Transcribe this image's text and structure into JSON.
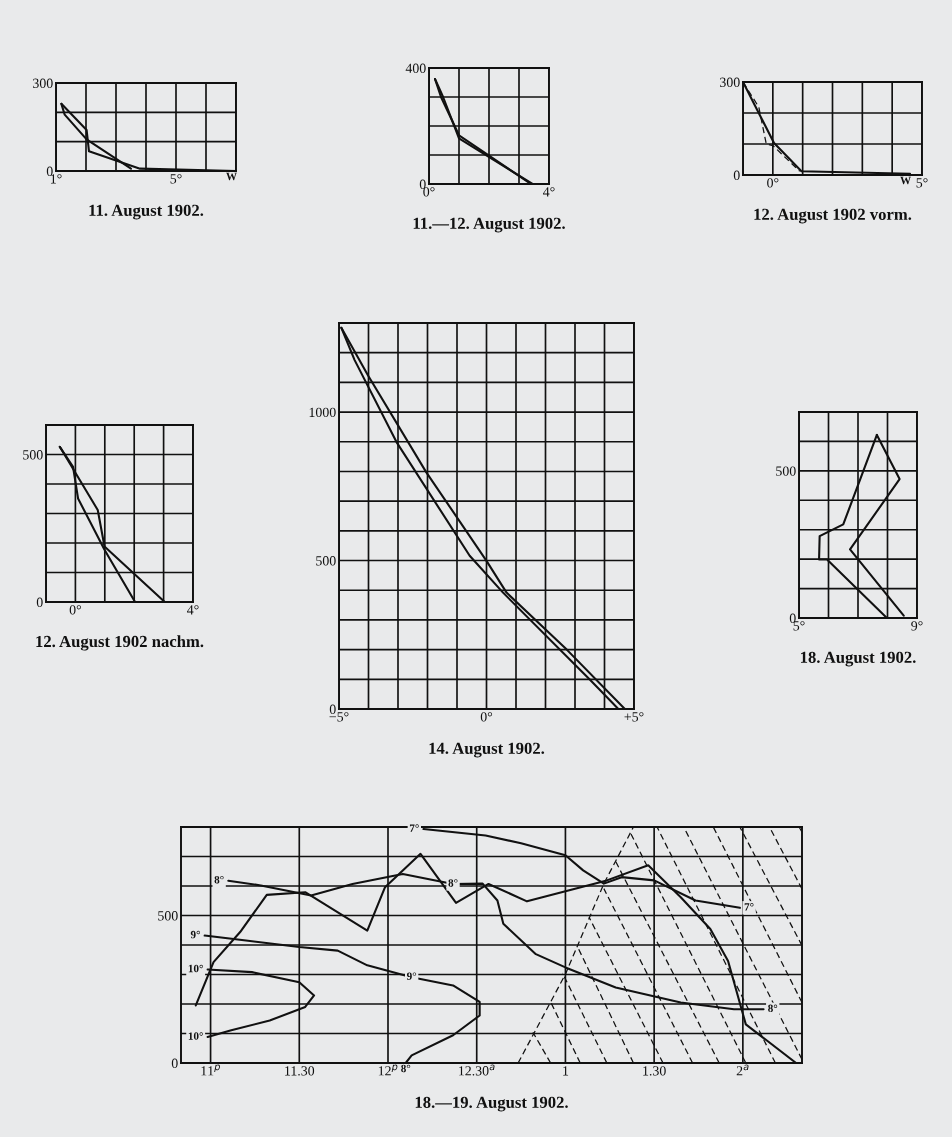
{
  "chart_data": [
    {
      "type": "line",
      "title": "11. August 1902.",
      "xlim": [
        1,
        7
      ],
      "ylim": [
        0,
        300
      ],
      "grid": true,
      "xticks": [
        {
          "value": 1,
          "label": "1°"
        },
        {
          "value": 2,
          "label": null
        },
        {
          "value": 3,
          "label": null
        },
        {
          "value": 4,
          "label": null
        },
        {
          "value": 5,
          "label": "5°"
        },
        {
          "value": 6,
          "label": null
        },
        {
          "value": 7,
          "label": null
        }
      ],
      "yticks": [
        0,
        {
          "value": 100,
          "label": null
        },
        {
          "value": 200,
          "label": null
        },
        300
      ],
      "annotations": [
        {
          "text": "W",
          "x": 6.85,
          "y": 0
        }
      ],
      "series": [
        {
          "color": "#111111",
          "x": [
            1.18,
            2.02,
            2.1,
            3.8,
            7
          ],
          "values": [
            229,
            140,
            67,
            8,
            0
          ]
        },
        {
          "color": "#111111",
          "x": [
            1.18,
            1.29,
            2.02,
            3.5
          ],
          "values": [
            229,
            192,
            108,
            8
          ]
        }
      ]
    },
    {
      "type": "line",
      "title": "11.—12. August 1902.",
      "xlim": [
        0,
        4
      ],
      "ylim": [
        0,
        400
      ],
      "grid": true,
      "xticks": [
        {
          "value": 0,
          "label": "0°"
        },
        {
          "value": 1,
          "label": null
        },
        {
          "value": 2,
          "label": null
        },
        {
          "value": 3,
          "label": null
        },
        {
          "value": 4,
          "label": "4°"
        }
      ],
      "yticks": [
        0,
        {
          "value": 100,
          "label": null
        },
        {
          "value": 200,
          "label": null
        },
        {
          "value": 300,
          "label": null
        },
        400
      ],
      "series": [
        {
          "color": "#111111",
          "x": [
            0.2,
            0.47,
            1.0,
            3.45
          ],
          "values": [
            362,
            300,
            157,
            0
          ]
        },
        {
          "color": "#111111",
          "x": [
            0.2,
            0.4,
            1.0,
            3.4
          ],
          "values": [
            362,
            300,
            168,
            0
          ]
        }
      ]
    },
    {
      "type": "line",
      "title": "12. August 1902 vorm.",
      "xlim": [
        -1,
        5
      ],
      "ylim": [
        0,
        300
      ],
      "grid": true,
      "xticks": [
        {
          "value": -1,
          "label": null
        },
        {
          "value": 0,
          "label": "0°"
        },
        {
          "value": 1,
          "label": null
        },
        {
          "value": 2,
          "label": null
        },
        {
          "value": 3,
          "label": null
        },
        {
          "value": 4,
          "label": null
        },
        {
          "value": 5,
          "label": "5°"
        }
      ],
      "yticks": [
        0,
        {
          "value": 100,
          "label": null
        },
        {
          "value": 200,
          "label": null
        },
        300
      ],
      "annotations": [
        {
          "text": "W",
          "x": 4.45,
          "y": 0
        }
      ],
      "series": [
        {
          "color": "#111111",
          "x": [
            -1,
            0.04,
            0.96,
            4.6
          ],
          "values": [
            300,
            103,
            12,
            4
          ]
        },
        {
          "color": "#111111",
          "line_style": "dashed",
          "x": [
            -1,
            -0.47,
            -0.22,
            0,
            0.9
          ],
          "values": [
            300,
            219,
            100,
            95,
            12
          ]
        }
      ]
    },
    {
      "type": "line",
      "title": "12. August 1902 nachm.",
      "xlim": [
        -1,
        4
      ],
      "ylim": [
        0,
        600
      ],
      "grid": true,
      "xticks": [
        {
          "value": -1,
          "label": null
        },
        {
          "value": 0,
          "label": "0°"
        },
        {
          "value": 1,
          "label": null
        },
        {
          "value": 2,
          "label": null
        },
        {
          "value": 3,
          "label": null
        },
        {
          "value": 4,
          "label": "4°"
        }
      ],
      "yticks": [
        0,
        {
          "value": 100,
          "label": null
        },
        {
          "value": 200,
          "label": null
        },
        {
          "value": 300,
          "label": null
        },
        {
          "value": 400,
          "label": null
        },
        500,
        {
          "value": 600,
          "label": null
        }
      ],
      "series": [
        {
          "color": "#111111",
          "x": [
            -0.53,
            -0.08,
            0.09,
            0.99,
            2.03
          ],
          "values": [
            526,
            458,
            351,
            177,
            0
          ]
        },
        {
          "color": "#111111",
          "x": [
            -0.53,
            0.76,
            0.99,
            3.04
          ],
          "values": [
            526,
            312,
            188,
            0
          ]
        }
      ]
    },
    {
      "type": "line",
      "title": "14. August 1902.",
      "xlim": [
        -5,
        5
      ],
      "ylim": [
        0,
        1300
      ],
      "grid": true,
      "xticks": [
        {
          "value": -5,
          "label": "−5°"
        },
        {
          "value": -4,
          "label": null
        },
        {
          "value": -3,
          "label": null
        },
        {
          "value": -2,
          "label": null
        },
        {
          "value": -1,
          "label": null
        },
        {
          "value": 0,
          "label": "0°"
        },
        {
          "value": 1,
          "label": null
        },
        {
          "value": 2,
          "label": null
        },
        {
          "value": 3,
          "label": null
        },
        {
          "value": 4,
          "label": null
        },
        {
          "value": 5,
          "label": "+5°"
        }
      ],
      "yticks": [
        0,
        {
          "value": 100,
          "label": null
        },
        {
          "value": 200,
          "label": null
        },
        {
          "value": 300,
          "label": null
        },
        {
          "value": 400,
          "label": null
        },
        500,
        {
          "value": 600,
          "label": null
        },
        {
          "value": 700,
          "label": null
        },
        {
          "value": 800,
          "label": null
        },
        {
          "value": 900,
          "label": null
        },
        1000,
        {
          "value": 1100,
          "label": null
        },
        {
          "value": 1200,
          "label": null
        },
        {
          "value": 1300,
          "label": null
        }
      ],
      "series": [
        {
          "color": "#111111",
          "x": [
            -4.92,
            -4.02,
            -2.04,
            0,
            0.68,
            2.72,
            4.69
          ],
          "values": [
            1284,
            1124,
            797,
            499,
            392,
            200,
            0
          ]
        },
        {
          "color": "#111111",
          "x": [
            -4.92,
            -4.47,
            -3.05,
            -0.57,
            0.56,
            3.5,
            4.47
          ],
          "values": [
            1284,
            1175,
            899,
            516,
            392,
            99,
            0
          ]
        }
      ]
    },
    {
      "type": "line",
      "title": "18. August 1902.",
      "xlim": [
        5,
        9
      ],
      "ylim": [
        0,
        700
      ],
      "grid": true,
      "xticks": [
        {
          "value": 5,
          "label": "5°"
        },
        {
          "value": 6,
          "label": null
        },
        {
          "value": 7,
          "label": null
        },
        {
          "value": 8,
          "label": null
        },
        {
          "value": 9,
          "label": "9°"
        }
      ],
      "yticks": [
        0,
        {
          "value": 100,
          "label": null
        },
        {
          "value": 200,
          "label": null
        },
        {
          "value": 300,
          "label": null
        },
        {
          "value": 400,
          "label": null
        },
        500,
        {
          "value": 600,
          "label": null
        },
        {
          "value": 700,
          "label": null
        }
      ],
      "series": [
        {
          "color": "#111111",
          "x": [
            7.98,
            5.95,
            5.68,
            5.7,
            6.5,
            7.64
          ],
          "values": [
            0,
            199,
            199,
            278,
            318,
            622
          ]
        },
        {
          "color": "#111111",
          "x": [
            7.64,
            8.41,
            6.73,
            8.55
          ],
          "values": [
            622,
            472,
            233,
            8
          ]
        }
      ]
    },
    {
      "type": "line",
      "title": "18.—19. August 1902.",
      "xlim": [
        "1902-08-18T22:50",
        "1902-08-19T02:20"
      ],
      "ylim": [
        0,
        800
      ],
      "grid": true,
      "xticks": [
        {
          "value": "1902-08-18T23:00",
          "label": "11$^{p}$"
        },
        {
          "value": "1902-08-18T23:30",
          "label": "11.30"
        },
        {
          "value": "1902-08-19T00:00",
          "label": "12$^{p}$"
        },
        {
          "value": "1902-08-19T00:30",
          "label": "12.30$^{a}$"
        },
        {
          "value": "1902-08-19T01:00",
          "label": "1"
        },
        {
          "value": "1902-08-19T01:30",
          "label": "1.30"
        },
        {
          "value": "1902-08-19T02:00",
          "label": "2$^{a}$"
        }
      ],
      "yticks": [
        0,
        {
          "value": 100,
          "label": null
        },
        {
          "value": 200,
          "label": null
        },
        {
          "value": 300,
          "label": null
        },
        {
          "value": 400,
          "label": null
        },
        500,
        {
          "value": 600,
          "label": null
        },
        {
          "value": 700,
          "label": null
        },
        {
          "value": 800,
          "label": null
        }
      ],
      "annotations": [
        {
          "text": "7°",
          "x": "1902-08-19T00:12",
          "y": 793
        },
        {
          "text": "7°",
          "x": "1902-08-19T01:59",
          "y": 526
        },
        {
          "text": "8°",
          "x": "1902-08-18T23:06",
          "y": 618
        },
        {
          "text": "8°",
          "x": "1902-08-19T00:22",
          "y": 607
        },
        {
          "text": "8°",
          "x": "1902-08-19T02:07",
          "y": 182
        },
        {
          "text": "9°",
          "x": "1902-08-18T22:58",
          "y": 432
        },
        {
          "text": "9°",
          "x": "1902-08-19T00:08",
          "y": 291
        },
        {
          "text": "8°",
          "x": "1902-08-19T00:06",
          "y": 0
        },
        {
          "text": "10°",
          "x": "1902-08-18T22:59",
          "y": 317
        },
        {
          "text": "10°",
          "x": "1902-08-18T22:59",
          "y": 88
        }
      ],
      "series": [
        {
          "color": "#111111",
          "x": [
            "1902-08-18T22:55",
            "1902-08-18T23:01",
            "1902-08-18T23:10",
            "1902-08-18T23:19",
            "1902-08-18T23:32",
            "1902-08-18T23:53",
            "1902-08-18T23:59",
            "1902-08-19T00:11",
            "1902-08-19T00:23",
            "1902-08-19T00:34",
            "1902-08-19T00:47",
            "1902-08-19T01:14",
            "1902-08-19T01:28",
            "1902-08-19T01:39",
            "1902-08-19T01:49",
            "1902-08-19T01:55",
            "1902-08-19T02:01",
            "1902-08-19T02:18"
          ],
          "values": [
            195,
            342,
            444,
            570,
            579,
            449,
            596,
            709,
            543,
            607,
            548,
            619,
            670,
            562,
            454,
            346,
            131,
            0
          ]
        },
        {
          "color": "#111111",
          "x": [
            "1902-08-19T00:12",
            "1902-08-19T00:33",
            "1902-08-19T00:45",
            "1902-08-19T01:00",
            "1902-08-19T01:06",
            "1902-08-19T01:13",
            "1902-08-19T01:19",
            "1902-08-19T01:30",
            "1902-08-19T01:44",
            "1902-08-19T01:59"
          ],
          "values": [
            793,
            771,
            745,
            704,
            653,
            608,
            630,
            619,
            551,
            526
          ]
        },
        {
          "color": "#111111",
          "x": [
            "1902-08-18T23:06",
            "1902-08-18T23:17",
            "1902-08-18T23:34",
            "1902-08-18T23:48",
            "1902-08-19T00:05",
            "1902-08-19T00:22",
            "1902-08-19T00:32",
            "1902-08-19T00:37",
            "1902-08-19T00:39",
            "1902-08-19T00:50",
            "1902-08-19T01:00",
            "1902-08-19T01:17",
            "1902-08-19T01:39",
            "1902-08-19T01:57",
            "1902-08-19T02:07"
          ],
          "values": [
            618,
            602,
            568,
            607,
            641,
            607,
            608,
            551,
            472,
            369,
            324,
            256,
            205,
            182,
            182
          ]
        },
        {
          "color": "#111111",
          "x": [
            "1902-08-18T22:58",
            "1902-08-18T23:12",
            "1902-08-18T23:30",
            "1902-08-18T23:43",
            "1902-08-18T23:53",
            "1902-08-19T00:08",
            "1902-08-19T00:22",
            "1902-08-19T00:31",
            "1902-08-19T00:31",
            "1902-08-19T00:22",
            "1902-08-19T00:08",
            "1902-08-19T00:06"
          ],
          "values": [
            432,
            415,
            393,
            381,
            331,
            291,
            263,
            207,
            161,
            94,
            26,
            0
          ]
        },
        {
          "color": "#111111",
          "x": [
            "1902-08-18T22:59",
            "1902-08-18T23:14",
            "1902-08-18T23:30",
            "1902-08-18T23:35",
            "1902-08-18T23:32",
            "1902-08-18T23:20",
            "1902-08-18T23:07",
            "1902-08-18T22:59"
          ],
          "values": [
            317,
            308,
            274,
            229,
            190,
            144,
            111,
            88
          ]
        },
        {
          "color": "#111111",
          "line_style": "dashed",
          "x": [
            "1902-08-19T00:44",
            "1902-08-19T01:00",
            "1902-08-19T01:13",
            "1902-08-19T01:23"
          ],
          "values": [
            0,
            301,
            608,
            800
          ]
        },
        {
          "color": "#111111",
          "line_style": "dashed",
          "x": [
            "1902-08-19T00:55",
            "1902-08-19T00:49"
          ],
          "values": [
            0,
            104
          ]
        },
        {
          "color": "#111111",
          "line_style": "dashed",
          "x": [
            "1902-08-19T01:05",
            "1902-08-19T00:55"
          ],
          "values": [
            0,
            207
          ]
        },
        {
          "color": "#111111",
          "line_style": "dashed",
          "x": [
            "1902-08-19T01:14",
            "1902-08-19T00:59"
          ],
          "values": [
            0,
            305
          ]
        },
        {
          "color": "#111111",
          "line_style": "dashed",
          "x": [
            "1902-08-19T01:23",
            "1902-08-19T01:04"
          ],
          "values": [
            0,
            396
          ]
        },
        {
          "color": "#111111",
          "line_style": "dashed",
          "x": [
            "1902-08-19T01:33",
            "1902-08-19T01:08"
          ],
          "values": [
            0,
            494
          ]
        },
        {
          "color": "#111111",
          "line_style": "dashed",
          "x": [
            "1902-08-19T01:43",
            "1902-08-19T01:13"
          ],
          "values": [
            0,
            591
          ]
        },
        {
          "color": "#111111",
          "line_style": "dashed",
          "x": [
            "1902-08-19T01:52",
            "1902-08-19T01:17"
          ],
          "values": [
            0,
            683
          ]
        },
        {
          "color": "#111111",
          "line_style": "dashed",
          "x": [
            "1902-08-19T02:01",
            "1902-08-19T01:22"
          ],
          "values": [
            0,
            780
          ]
        },
        {
          "color": "#111111",
          "line_style": "dashed",
          "x": [
            "1902-08-19T02:11",
            "1902-08-19T01:31"
          ],
          "values": [
            0,
            800
          ]
        },
        {
          "color": "#111111",
          "line_style": "dashed",
          "x": [
            "1902-08-19T02:20",
            "1902-08-19T01:40"
          ],
          "values": [
            12,
            800
          ]
        },
        {
          "color": "#111111",
          "line_style": "dashed",
          "x": [
            "1902-08-19T02:20",
            "1902-08-19T01:50"
          ],
          "values": [
            205,
            800
          ]
        },
        {
          "color": "#111111",
          "line_style": "dashed",
          "x": [
            "1902-08-19T02:20",
            "1902-08-19T01:59"
          ],
          "values": [
            398,
            800
          ]
        },
        {
          "color": "#111111",
          "line_style": "dashed",
          "x": [
            "1902-08-19T02:20",
            "1902-08-19T02:09"
          ],
          "values": [
            590,
            800
          ]
        },
        {
          "color": "#111111",
          "line_style": "dashed",
          "x": [
            "1902-08-19T02:20",
            "1902-08-19T02:19"
          ],
          "values": [
            783,
            800
          ]
        }
      ]
    }
  ]
}
